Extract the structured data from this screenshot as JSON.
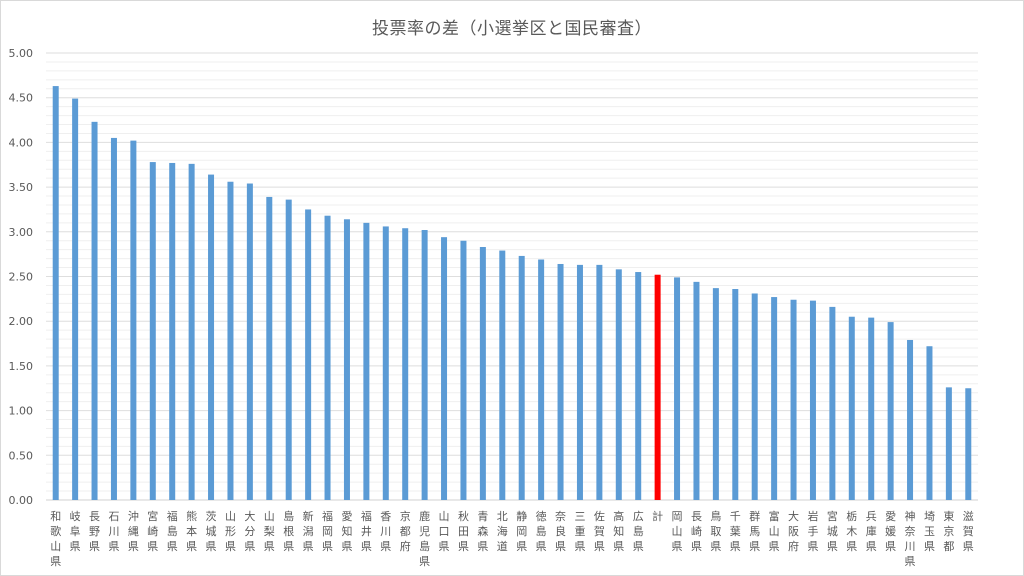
{
  "chart_data": {
    "type": "bar",
    "title": "投票率の差（小選挙区と国民審査）",
    "ylim": [
      0,
      5
    ],
    "yticks": [
      "0.00",
      "0.50",
      "1.00",
      "1.50",
      "2.00",
      "2.50",
      "3.00",
      "3.50",
      "4.00",
      "4.50",
      "5.00"
    ],
    "grid": true,
    "legend": "none",
    "bar_color": "#5b9bd5",
    "highlight_color": "#ff0000",
    "highlight_category": "計",
    "categories": [
      "和歌山県",
      "岐阜県",
      "長野県",
      "石川県",
      "沖縄県",
      "宮崎県",
      "福島県",
      "熊本県",
      "茨城県",
      "山形県",
      "大分県",
      "山梨県",
      "島根県",
      "新潟県",
      "福岡県",
      "愛知県",
      "福井県",
      "香川県",
      "京都府",
      "鹿児島県",
      "山口県",
      "秋田県",
      "青森県",
      "北海道",
      "静岡県",
      "徳島県",
      "奈良県",
      "三重県",
      "佐賀県",
      "高知県",
      "広島県",
      "計",
      "岡山県",
      "長崎県",
      "鳥取県",
      "千葉県",
      "群馬県",
      "富山県",
      "大阪府",
      "岩手県",
      "宮城県",
      "栃木県",
      "兵庫県",
      "愛媛県",
      "神奈川県",
      "埼玉県",
      "東京都",
      "滋賀県"
    ],
    "values": [
      4.63,
      4.49,
      4.23,
      4.05,
      4.02,
      3.78,
      3.77,
      3.76,
      3.64,
      3.56,
      3.54,
      3.39,
      3.36,
      3.25,
      3.18,
      3.14,
      3.1,
      3.06,
      3.04,
      3.02,
      2.94,
      2.9,
      2.83,
      2.79,
      2.73,
      2.69,
      2.64,
      2.63,
      2.63,
      2.58,
      2.55,
      2.52,
      2.49,
      2.44,
      2.37,
      2.36,
      2.31,
      2.27,
      2.24,
      2.23,
      2.16,
      2.05,
      2.04,
      1.99,
      1.79,
      1.72,
      1.26,
      1.25
    ]
  }
}
